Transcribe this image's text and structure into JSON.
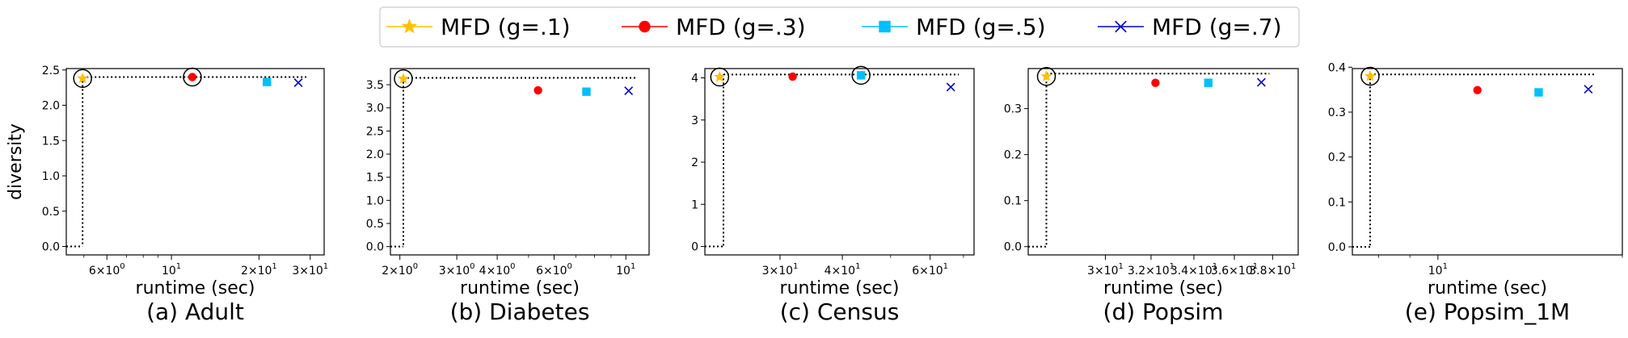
{
  "legend": {
    "position": "top-center",
    "items": [
      {
        "label": "MFD (g=.1)",
        "color": "#FFC000",
        "marker": "star"
      },
      {
        "label": "MFD (g=.3)",
        "color": "#FF0000",
        "marker": "circle"
      },
      {
        "label": "MFD (g=.5)",
        "color": "#00BFFF",
        "marker": "square"
      },
      {
        "label": "MFD (g=.7)",
        "color": "#0000CD",
        "marker": "x"
      }
    ]
  },
  "chart_data": [
    {
      "type": "scatter",
      "caption": "(a) Adult",
      "xlabel": "runtime (sec)",
      "ylabel": "diversity",
      "xscale": "log",
      "xlim": [
        4.35,
        33.5
      ],
      "ylim": [
        -0.12,
        2.52
      ],
      "yticks": [
        0.0,
        0.5,
        1.0,
        1.5,
        2.0,
        2.5
      ],
      "yticklabels": [
        "0.0",
        "0.5",
        "1.0",
        "1.5",
        "2.0",
        "2.5"
      ],
      "xticks": [
        6,
        10,
        20,
        30
      ],
      "xticklabels": [
        {
          "base": "6",
          "exp": "× 10",
          "sup": "0"
        },
        {
          "base": "10",
          "exp": "",
          "sup": "1"
        },
        {
          "base": "2",
          "exp": "× 10",
          "sup": "1"
        },
        {
          "base": "3",
          "exp": "× 10",
          "sup": "1"
        }
      ],
      "points": [
        {
          "series": 0,
          "x": 4.95,
          "y": 2.38
        },
        {
          "series": 1,
          "x": 11.8,
          "y": 2.4
        },
        {
          "series": 2,
          "x": 21.3,
          "y": 2.33
        },
        {
          "series": 3,
          "x": 27.3,
          "y": 2.32
        }
      ],
      "highlighted": [
        0,
        1
      ],
      "frontier": {
        "x": 4.95,
        "y": 2.4
      }
    },
    {
      "type": "scatter",
      "caption": "(b) Diabetes",
      "xlabel": "runtime (sec)",
      "ylabel": "",
      "xscale": "log",
      "xlim": [
        1.87,
        11.8
      ],
      "ylim": [
        -0.18,
        3.85
      ],
      "yticks": [
        0.0,
        0.5,
        1.0,
        1.5,
        2.0,
        2.5,
        3.0,
        3.5
      ],
      "yticklabels": [
        "0.0",
        "0.5",
        "1.0",
        "1.5",
        "2.0",
        "2.5",
        "3.0",
        "3.5"
      ],
      "xticks": [
        2,
        3,
        4,
        6,
        10
      ],
      "xticklabels": [
        {
          "base": "2",
          "exp": "× 10",
          "sup": "0"
        },
        {
          "base": "3",
          "exp": "× 10",
          "sup": "0"
        },
        {
          "base": "4",
          "exp": "× 10",
          "sup": "0"
        },
        {
          "base": "6",
          "exp": "× 10",
          "sup": "0"
        },
        {
          "base": "10",
          "exp": "",
          "sup": "1"
        }
      ],
      "points": [
        {
          "series": 0,
          "x": 2.05,
          "y": 3.63
        },
        {
          "series": 1,
          "x": 5.35,
          "y": 3.38
        },
        {
          "series": 2,
          "x": 7.55,
          "y": 3.35
        },
        {
          "series": 3,
          "x": 10.2,
          "y": 3.37
        }
      ],
      "highlighted": [
        0
      ],
      "frontier": {
        "x": 2.05,
        "y": 3.65
      }
    },
    {
      "type": "scatter",
      "caption": "(c) Census",
      "xlabel": "runtime (sec)",
      "ylabel": "",
      "xscale": "log",
      "xlim": [
        21.2,
        73.5
      ],
      "ylim": [
        -0.2,
        4.22
      ],
      "yticks": [
        0,
        1,
        2,
        3,
        4
      ],
      "yticklabels": [
        "0",
        "1",
        "2",
        "3",
        "4"
      ],
      "xticks": [
        30,
        40,
        60
      ],
      "xticklabels": [
        {
          "base": "3",
          "exp": "× 10",
          "sup": "1"
        },
        {
          "base": "4",
          "exp": "× 10",
          "sup": "1"
        },
        {
          "base": "6",
          "exp": "× 10",
          "sup": "1"
        }
      ],
      "points": [
        {
          "series": 0,
          "x": 22.7,
          "y": 4.02
        },
        {
          "series": 1,
          "x": 31.8,
          "y": 4.03
        },
        {
          "series": 2,
          "x": 43.6,
          "y": 4.06
        },
        {
          "series": 3,
          "x": 66.0,
          "y": 3.78
        }
      ],
      "highlighted": [
        0,
        2
      ],
      "frontier": {
        "x": 23.1,
        "y": 4.08
      }
    },
    {
      "type": "scatter",
      "caption": "(d) Popsim",
      "xlabel": "runtime (sec)",
      "ylabel": "",
      "xscale": "log",
      "xlim": [
        26.9,
        39.4
      ],
      "ylim": [
        -0.018,
        0.387
      ],
      "yticks": [
        0.0,
        0.1,
        0.2,
        0.3
      ],
      "yticklabels": [
        "0.0",
        "0.1",
        "0.2",
        "0.3"
      ],
      "xticks": [
        30,
        32,
        34,
        36,
        38
      ],
      "xticklabels": [
        {
          "base": "3",
          "exp": "× 10",
          "sup": "1"
        },
        {
          "base": "3.2",
          "exp": "× 10",
          "sup": "1"
        },
        {
          "base": "3.4",
          "exp": "× 10",
          "sup": "1"
        },
        {
          "base": "3.6",
          "exp": "× 10",
          "sup": "1"
        },
        {
          "base": "3.8",
          "exp": "× 10",
          "sup": "1"
        }
      ],
      "points": [
        {
          "series": 0,
          "x": 27.6,
          "y": 0.37
        },
        {
          "series": 1,
          "x": 32.2,
          "y": 0.356
        },
        {
          "series": 2,
          "x": 34.7,
          "y": 0.356
        },
        {
          "series": 3,
          "x": 37.4,
          "y": 0.357
        }
      ],
      "highlighted": [
        0
      ],
      "frontier": {
        "x": 27.6,
        "y": 0.376
      }
    },
    {
      "type": "scatter",
      "caption": "(e) Popsim_1M",
      "xlabel": "runtime (sec)",
      "ylabel": "",
      "xscale": "log",
      "xlim": [
        7.25,
        20.0
      ],
      "ylim": [
        -0.018,
        0.397
      ],
      "yticks": [
        0.0,
        0.1,
        0.2,
        0.3,
        0.4
      ],
      "yticklabels": [
        "0.0",
        "0.1",
        "0.2",
        "0.3",
        "0.4"
      ],
      "xticks": [
        10
      ],
      "xticklabels": [
        {
          "base": "10",
          "exp": "",
          "sup": "1"
        }
      ],
      "points": [
        {
          "series": 0,
          "x": 7.75,
          "y": 0.38
        },
        {
          "series": 1,
          "x": 11.6,
          "y": 0.349
        },
        {
          "series": 2,
          "x": 14.6,
          "y": 0.344
        },
        {
          "series": 3,
          "x": 17.6,
          "y": 0.351
        }
      ],
      "highlighted": [
        0
      ],
      "frontier": {
        "x": 7.75,
        "y": 0.384
      }
    }
  ]
}
